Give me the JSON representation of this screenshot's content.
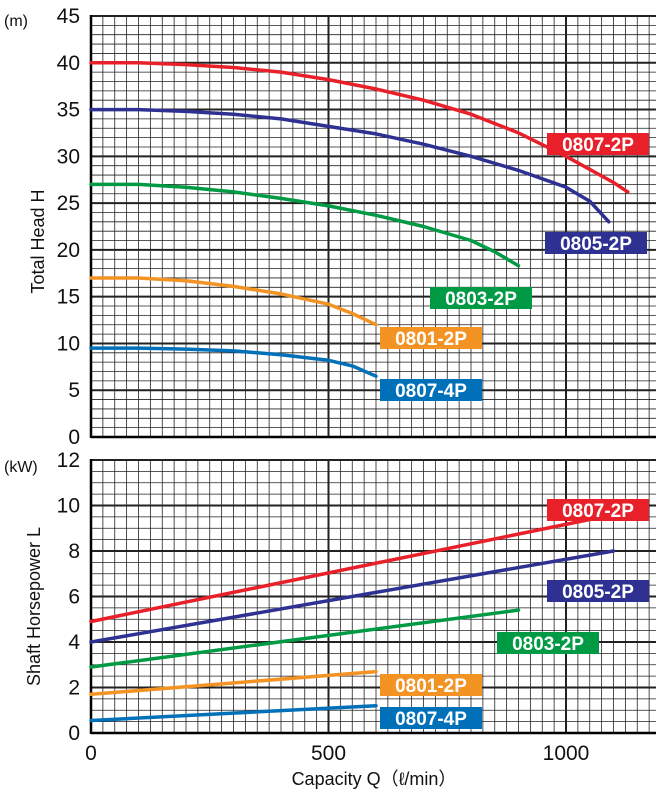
{
  "chart_data": [
    {
      "type": "line",
      "title": "",
      "unit_label": "(m)",
      "xlabel": "",
      "ylabel": "Total Head H",
      "xlim": [
        0,
        1200
      ],
      "ylim": [
        0,
        45
      ],
      "y_ticks": [
        0,
        5,
        10,
        15,
        20,
        25,
        30,
        35,
        40,
        45
      ],
      "grid": true,
      "series": [
        {
          "name": "0807-2P",
          "color": "#e8202a",
          "x": [
            0,
            100,
            200,
            300,
            400,
            500,
            600,
            700,
            800,
            900,
            1000,
            1100,
            1130
          ],
          "y": [
            40,
            40,
            39.8,
            39.5,
            39,
            38.2,
            37.2,
            36,
            34.5,
            32.5,
            30,
            27.2,
            26.2
          ]
        },
        {
          "name": "0805-2P",
          "color": "#2e3192",
          "x": [
            0,
            100,
            200,
            300,
            400,
            500,
            600,
            700,
            800,
            900,
            1000,
            1050,
            1090
          ],
          "y": [
            35,
            35,
            34.8,
            34.5,
            34,
            33.2,
            32.4,
            31.3,
            30,
            28.5,
            26.7,
            25.2,
            23
          ]
        },
        {
          "name": "0803-2P",
          "color": "#009a44",
          "x": [
            0,
            100,
            200,
            300,
            400,
            500,
            600,
            700,
            800,
            850,
            900
          ],
          "y": [
            27,
            27,
            26.7,
            26.2,
            25.5,
            24.7,
            23.7,
            22.5,
            21,
            19.8,
            18.3
          ]
        },
        {
          "name": "0801-2P",
          "color": "#f39324",
          "x": [
            0,
            100,
            200,
            300,
            400,
            500,
            550,
            600
          ],
          "y": [
            17,
            17,
            16.7,
            16.1,
            15.3,
            14.2,
            13.2,
            12
          ]
        },
        {
          "name": "0807-4P",
          "color": "#0070b9",
          "x": [
            0,
            100,
            200,
            300,
            400,
            500,
            550,
            600
          ],
          "y": [
            9.5,
            9.5,
            9.4,
            9.2,
            8.8,
            8.2,
            7.6,
            6.5
          ]
        }
      ]
    },
    {
      "type": "line",
      "title": "",
      "unit_label": "(kW)",
      "xlabel": "Capacity Q（ℓ/min）",
      "ylabel": "Shaft Horsepower L",
      "xlim": [
        0,
        1200
      ],
      "ylim": [
        0,
        12
      ],
      "y_ticks": [
        0,
        2,
        4,
        6,
        8,
        10,
        12
      ],
      "x_ticks": [
        0,
        500,
        1000
      ],
      "grid": true,
      "series": [
        {
          "name": "0807-2P",
          "color": "#e8202a",
          "x": [
            0,
            1100
          ],
          "y": [
            4.9,
            9.6
          ]
        },
        {
          "name": "0805-2P",
          "color": "#2e3192",
          "x": [
            0,
            1100
          ],
          "y": [
            4.0,
            8.0
          ]
        },
        {
          "name": "0803-2P",
          "color": "#009a44",
          "x": [
            0,
            900
          ],
          "y": [
            2.9,
            5.4
          ]
        },
        {
          "name": "0801-2P",
          "color": "#f39324",
          "x": [
            0,
            600
          ],
          "y": [
            1.7,
            2.7
          ]
        },
        {
          "name": "0807-4P",
          "color": "#0070b9",
          "x": [
            0,
            600
          ],
          "y": [
            0.55,
            1.2
          ]
        }
      ]
    }
  ]
}
